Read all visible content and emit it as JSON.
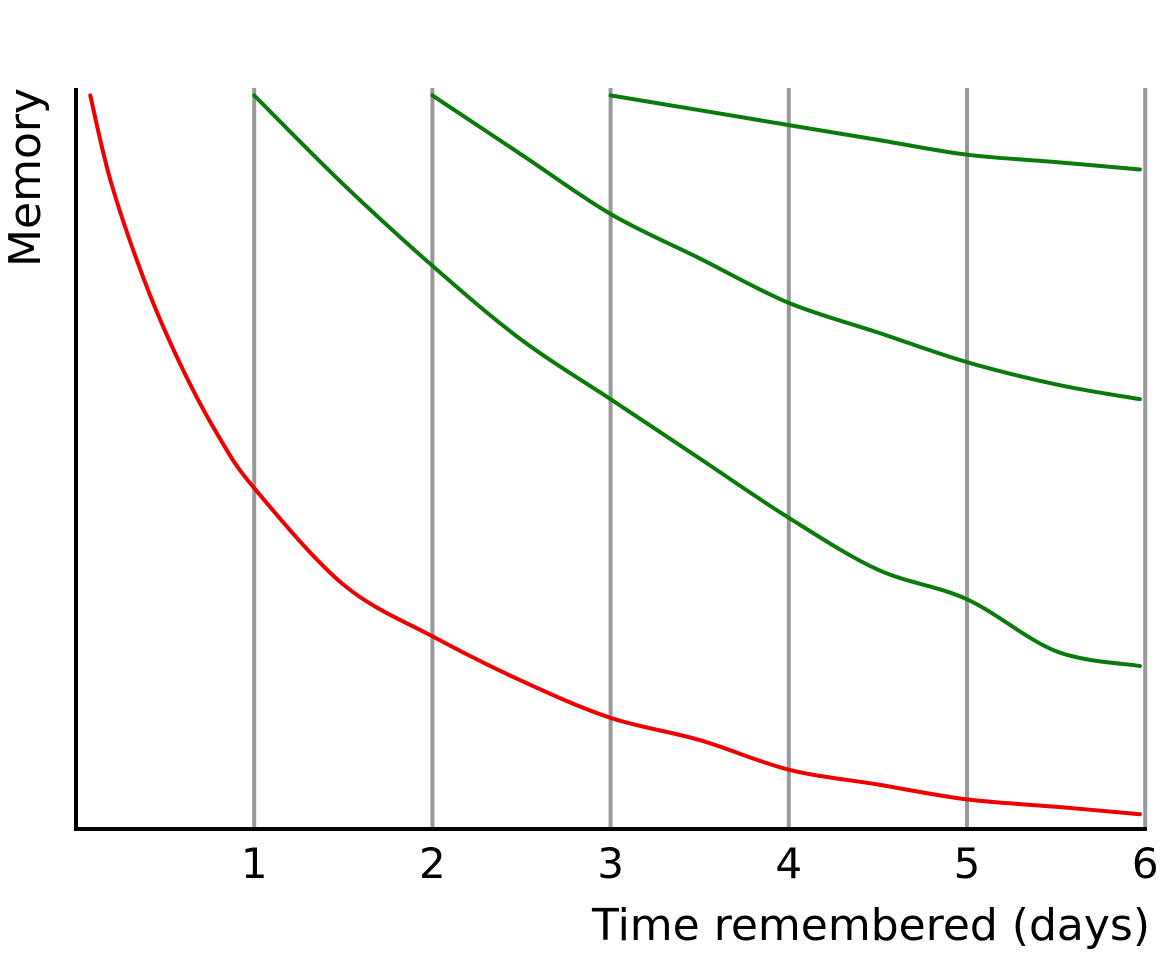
{
  "chart_data": {
    "type": "line",
    "title": "",
    "xlabel": "Time remembered (days)",
    "ylabel": "Memory",
    "xlim": [
      0,
      6
    ],
    "ylim": [
      0,
      1
    ],
    "xticks": [
      "1",
      "2",
      "3",
      "4",
      "5",
      "6"
    ],
    "yticks": [],
    "grid": "vertical lines at x ticks",
    "legend": "none",
    "colors": {
      "forgetting": "#ee0000",
      "review": "#0a7a0a",
      "gridline": "#999999",
      "axis": "#000000"
    },
    "series": [
      {
        "color": "#ee0000",
        "points": [
          [
            0.08,
            0.99
          ],
          [
            0.2,
            0.87
          ],
          [
            0.4,
            0.73
          ],
          [
            0.6,
            0.62
          ],
          [
            0.8,
            0.53
          ],
          [
            1.0,
            0.46
          ],
          [
            1.5,
            0.33
          ],
          [
            2.0,
            0.26
          ],
          [
            2.5,
            0.2
          ],
          [
            3.0,
            0.15
          ],
          [
            3.5,
            0.12
          ],
          [
            4.0,
            0.08
          ],
          [
            4.5,
            0.06
          ],
          [
            5.0,
            0.04
          ],
          [
            5.5,
            0.03
          ],
          [
            5.97,
            0.02
          ]
        ]
      },
      {
        "color": "#0a7a0a",
        "points": [
          [
            1.0,
            0.99
          ],
          [
            1.5,
            0.87
          ],
          [
            2.0,
            0.76
          ],
          [
            2.5,
            0.66
          ],
          [
            3.0,
            0.58
          ],
          [
            3.5,
            0.5
          ],
          [
            4.0,
            0.42
          ],
          [
            4.5,
            0.35
          ],
          [
            5.0,
            0.31
          ],
          [
            5.5,
            0.24
          ],
          [
            5.97,
            0.22
          ]
        ]
      },
      {
        "color": "#0a7a0a",
        "points": [
          [
            2.0,
            0.99
          ],
          [
            2.5,
            0.91
          ],
          [
            3.0,
            0.83
          ],
          [
            3.5,
            0.77
          ],
          [
            4.0,
            0.71
          ],
          [
            4.5,
            0.67
          ],
          [
            5.0,
            0.63
          ],
          [
            5.5,
            0.6
          ],
          [
            5.97,
            0.58
          ]
        ]
      },
      {
        "color": "#0a7a0a",
        "points": [
          [
            3.0,
            0.99
          ],
          [
            3.5,
            0.97
          ],
          [
            4.0,
            0.95
          ],
          [
            4.5,
            0.93
          ],
          [
            5.0,
            0.91
          ],
          [
            5.5,
            0.9
          ],
          [
            5.97,
            0.89
          ]
        ]
      }
    ]
  }
}
